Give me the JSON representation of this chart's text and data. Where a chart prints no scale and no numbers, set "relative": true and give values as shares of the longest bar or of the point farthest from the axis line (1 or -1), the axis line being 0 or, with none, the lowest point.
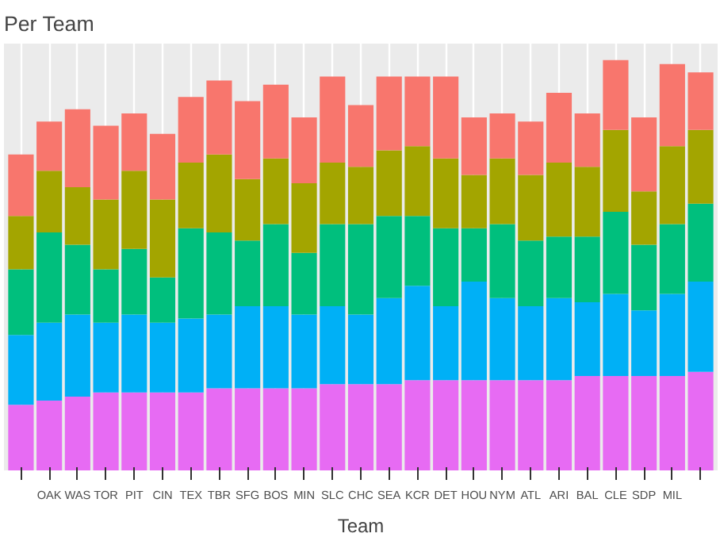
{
  "chart_data": {
    "type": "bar",
    "title": "Per Team",
    "xlabel": "Team",
    "stacked": true,
    "relative": true,
    "grid": "x",
    "categories": [
      null,
      "OAK",
      "WAS",
      "TOR",
      "PIT",
      "CIN",
      "TEX",
      "TBR",
      "SFG",
      "BOS",
      "MIN",
      "SLC",
      "CHC",
      "SEA",
      "KCR",
      "DET",
      "HOU",
      "NYM",
      "ATL",
      "ARI",
      "BAL",
      "CLE",
      "SDP",
      "MIL",
      null
    ],
    "series": [
      {
        "color": "#e76bf3",
        "values": [
          0.16,
          0.17,
          0.18,
          0.19,
          0.19,
          0.19,
          0.19,
          0.2,
          0.2,
          0.2,
          0.2,
          0.21,
          0.21,
          0.21,
          0.22,
          0.22,
          0.22,
          0.22,
          0.22,
          0.22,
          0.23,
          0.23,
          0.23,
          0.23,
          0.24
        ]
      },
      {
        "color": "#00b0f6",
        "values": [
          0.17,
          0.19,
          0.2,
          0.17,
          0.19,
          0.17,
          0.18,
          0.18,
          0.2,
          0.2,
          0.18,
          0.19,
          0.17,
          0.21,
          0.23,
          0.18,
          0.24,
          0.2,
          0.18,
          0.2,
          0.18,
          0.2,
          0.16,
          0.2,
          0.22
        ]
      },
      {
        "color": "#00bf7d",
        "values": [
          0.16,
          0.22,
          0.17,
          0.13,
          0.16,
          0.11,
          0.22,
          0.2,
          0.16,
          0.2,
          0.15,
          0.2,
          0.22,
          0.2,
          0.17,
          0.19,
          0.13,
          0.18,
          0.16,
          0.15,
          0.16,
          0.2,
          0.16,
          0.17,
          0.19
        ]
      },
      {
        "color": "#a3a500",
        "values": [
          0.13,
          0.15,
          0.14,
          0.17,
          0.19,
          0.19,
          0.16,
          0.19,
          0.15,
          0.16,
          0.17,
          0.15,
          0.14,
          0.16,
          0.17,
          0.17,
          0.13,
          0.16,
          0.16,
          0.18,
          0.17,
          0.2,
          0.13,
          0.19,
          0.18
        ]
      },
      {
        "color": "#f8766d",
        "values": [
          0.15,
          0.12,
          0.19,
          0.18,
          0.14,
          0.16,
          0.16,
          0.18,
          0.19,
          0.18,
          0.16,
          0.21,
          0.15,
          0.18,
          0.17,
          0.2,
          0.14,
          0.11,
          0.13,
          0.17,
          0.13,
          0.17,
          0.18,
          0.2,
          0.14
        ]
      }
    ]
  }
}
